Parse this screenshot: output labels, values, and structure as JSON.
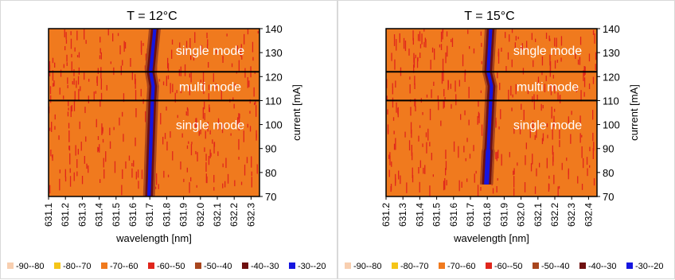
{
  "legend": {
    "items": [
      {
        "label": "-90--80",
        "color": "#f8cfb0"
      },
      {
        "label": "-80--70",
        "color": "#f5c518"
      },
      {
        "label": "-70--60",
        "color": "#f07a1e"
      },
      {
        "label": "-60--50",
        "color": "#e0261c"
      },
      {
        "label": "-50--40",
        "color": "#a8461e"
      },
      {
        "label": "-40--30",
        "color": "#6e1010"
      },
      {
        "label": "-30--20",
        "color": "#1616e0"
      }
    ]
  },
  "chart_data": [
    {
      "type": "heatmap",
      "title": "T = 12°C",
      "xlabel": "wavelength [nm]",
      "ylabel": "current [mA]",
      "xlim": [
        631.1,
        632.35
      ],
      "ylim": [
        70,
        140
      ],
      "x_ticks": [
        "631.1",
        "631.2",
        "631.3",
        "631.4",
        "631.5",
        "631.6",
        "631.7",
        "631.8",
        "631.9",
        "632.0",
        "632.1",
        "632.2",
        "632.3"
      ],
      "y_ticks": [
        "70",
        "80",
        "90",
        "100",
        "110",
        "120",
        "130",
        "140"
      ],
      "mode_boundaries_mA": [
        110,
        122
      ],
      "region_labels": [
        {
          "text": "single mode",
          "current_center": 131
        },
        {
          "text": "multi mode",
          "current_center": 116
        },
        {
          "text": "single mode",
          "current_center": 100
        }
      ],
      "peak_wavelength_nm": [
        {
          "current": 70,
          "wavelength": 631.695
        },
        {
          "current": 110,
          "wavelength": 631.715
        },
        {
          "current": 116,
          "wavelength": 631.72
        },
        {
          "current": 122,
          "wavelength": 631.705
        },
        {
          "current": 140,
          "wavelength": 631.73
        }
      ]
    },
    {
      "type": "heatmap",
      "title": "T = 15°C",
      "xlabel": "wavelength [nm]",
      "ylabel": "current [mA]",
      "xlim": [
        631.2,
        632.45
      ],
      "ylim": [
        70,
        140
      ],
      "x_ticks": [
        "631.2",
        "631.3",
        "631.4",
        "631.5",
        "631.6",
        "631.7",
        "631.8",
        "631.9",
        "632.0",
        "632.1",
        "632.2",
        "632.3",
        "632.4"
      ],
      "y_ticks": [
        "70",
        "80",
        "90",
        "100",
        "110",
        "120",
        "130",
        "140"
      ],
      "mode_boundaries_mA": [
        110,
        122
      ],
      "region_labels": [
        {
          "text": "single mode",
          "current_center": 131
        },
        {
          "text": "multi mode",
          "current_center": 116
        },
        {
          "text": "single mode",
          "current_center": 100
        }
      ],
      "peak_wavelength_nm": [
        {
          "current": 75,
          "wavelength": 631.795
        },
        {
          "current": 110,
          "wavelength": 631.82
        },
        {
          "current": 116,
          "wavelength": 631.825
        },
        {
          "current": 122,
          "wavelength": 631.805
        },
        {
          "current": 140,
          "wavelength": 631.82
        }
      ]
    }
  ]
}
